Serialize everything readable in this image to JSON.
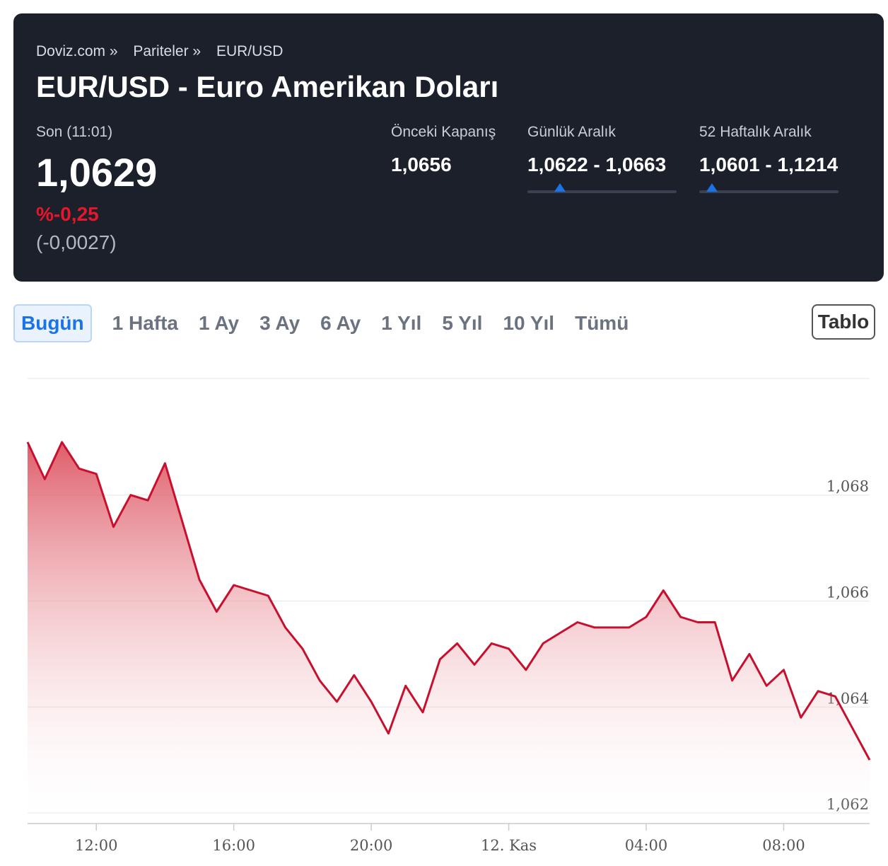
{
  "breadcrumb": [
    "Doviz.com »",
    "Pariteler »",
    "EUR/USD"
  ],
  "title": "EUR/USD - Euro Amerikan Doları",
  "last": {
    "label": "Son (11:01)",
    "value": "1,0629",
    "change_pct": "%-0,25",
    "change_abs": "(-0,0027)"
  },
  "prev_close": {
    "label": "Önceki Kapanış",
    "value": "1,0656"
  },
  "daily_range": {
    "label": "Günlük Aralık",
    "value": "1,0622 - 1,0663",
    "position": 0.22
  },
  "week52_range": {
    "label": "52 Haftalık Aralık",
    "value": "1,0601 - 1,1214",
    "position": 0.09
  },
  "tabs": [
    "Bugün",
    "1 Hafta",
    "1 Ay",
    "3 Ay",
    "6 Ay",
    "1 Yıl",
    "5 Yıl",
    "10 Yıl",
    "Tümü"
  ],
  "active_tab": "Bugün",
  "table_button": "Tablo",
  "colors": {
    "line": "#c8102e",
    "fill_top": "#d9404f",
    "accent": "#1a73e8",
    "negative": "#e8162c",
    "header_bg": "#1b202b"
  },
  "chart_data": {
    "type": "area",
    "x": [
      0,
      0.5,
      1,
      1.5,
      2,
      2.5,
      3,
      3.5,
      4,
      4.5,
      5,
      5.5,
      6,
      6.5,
      7,
      7.5,
      8,
      8.5,
      9,
      9.5,
      10,
      10.5,
      11,
      11.5,
      12,
      12.5,
      13,
      13.5,
      14,
      14.5,
      15,
      15.5,
      16,
      16.5,
      17,
      17.5,
      18,
      18.5,
      19,
      19.5,
      20,
      20.5,
      21,
      21.5,
      22,
      22.5,
      23,
      23.5,
      24,
      24.5
    ],
    "y": [
      1.069,
      1.0683,
      1.069,
      1.0685,
      1.0684,
      1.0674,
      1.068,
      1.0679,
      1.0686,
      1.0675,
      1.0664,
      1.0658,
      1.0663,
      1.0662,
      1.0661,
      1.0655,
      1.0651,
      1.0645,
      1.0641,
      1.0646,
      1.0641,
      1.0635,
      1.0644,
      1.0639,
      1.0649,
      1.0652,
      1.0648,
      1.0652,
      1.0651,
      1.0647,
      1.0652,
      1.0654,
      1.0656,
      1.0655,
      1.0655,
      1.0655,
      1.0657,
      1.0662,
      1.0657,
      1.0656,
      1.0656,
      1.0645,
      1.065,
      1.0644,
      1.0647,
      1.0638,
      1.0643,
      1.0642,
      1.0636,
      1.063
    ],
    "x_ticks": [
      "12:00",
      "16:00",
      "20:00",
      "12. Kas",
      "04:00",
      "08:00"
    ],
    "y_ticks": [
      "1,062",
      "1,064",
      "1,066",
      "1,068"
    ],
    "y_tick_values": [
      1.062,
      1.064,
      1.066,
      1.068
    ],
    "ylim": [
      1.0618,
      1.0702
    ],
    "grid": true
  }
}
